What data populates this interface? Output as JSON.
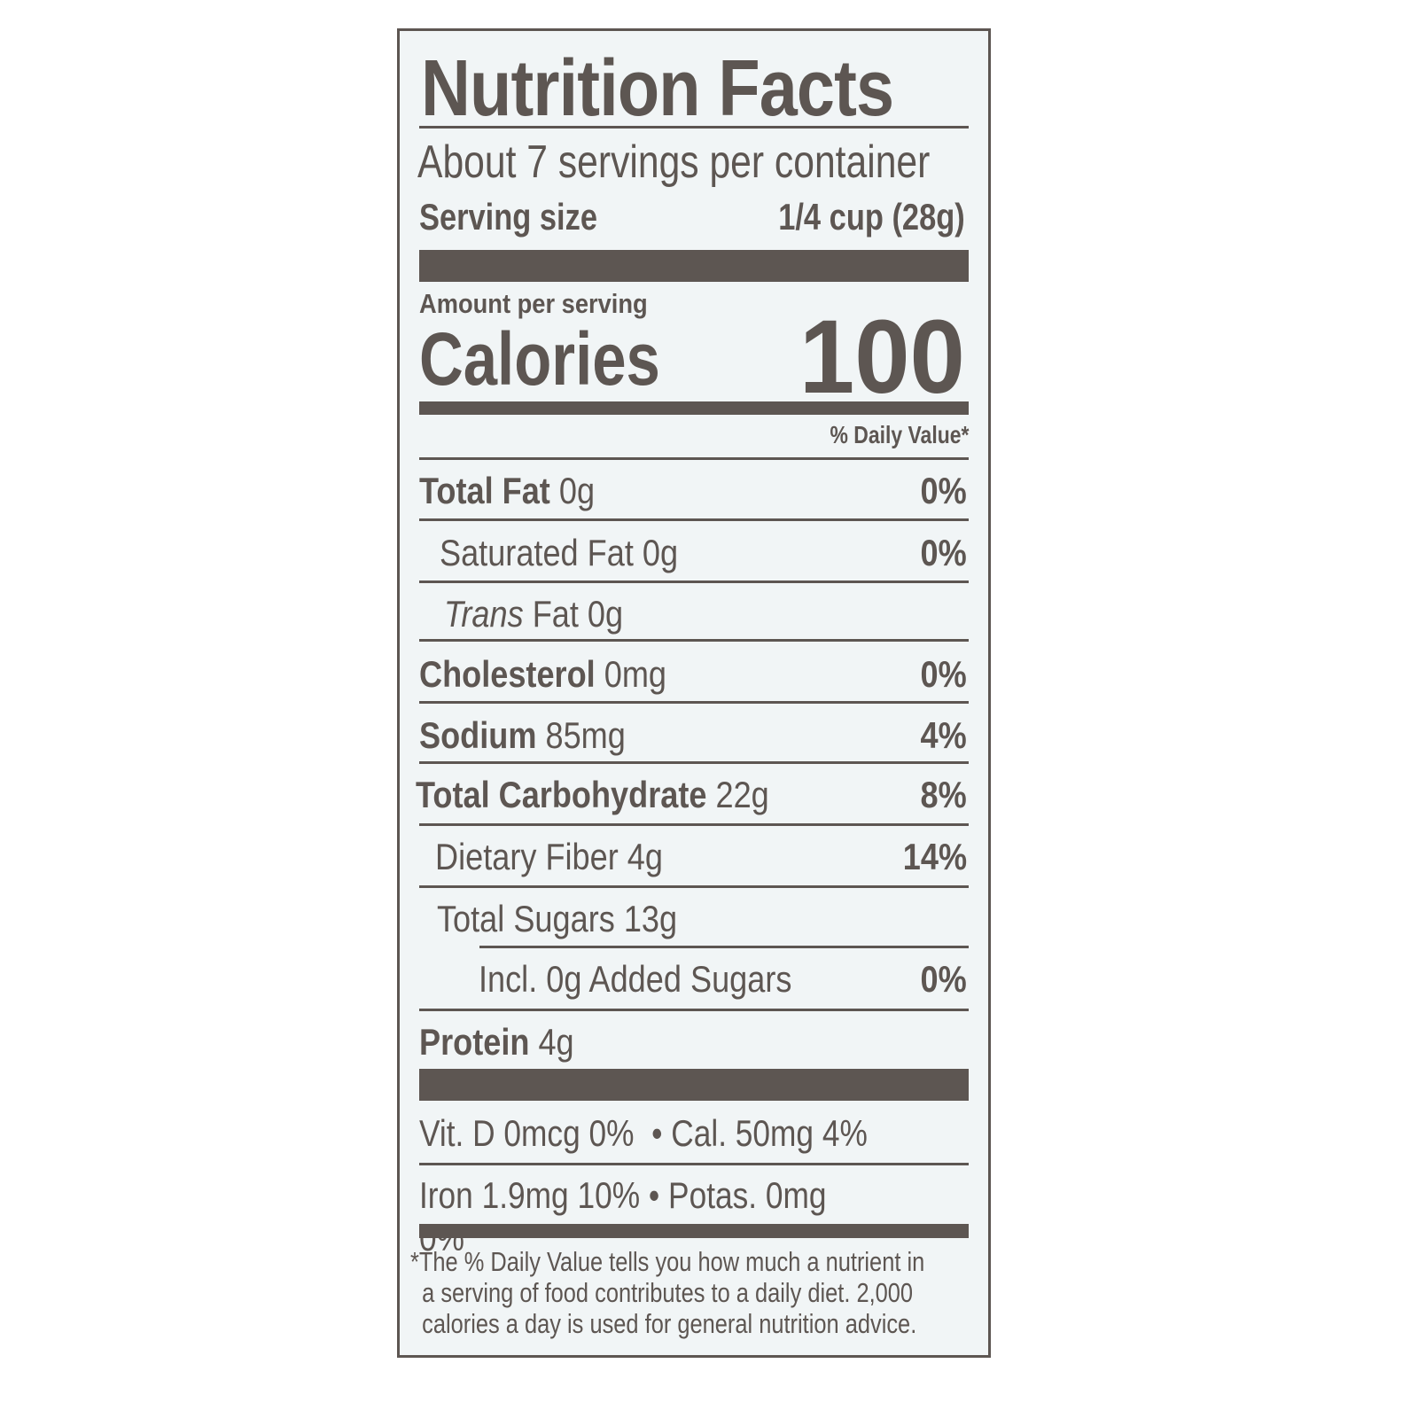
{
  "title": "Nutrition Facts",
  "servings_per_container": "About 7 servings per container",
  "serving_size": {
    "label": "Serving size",
    "value": "1/4 cup (28g)"
  },
  "amount_per_serving": "Amount per serving",
  "calories": {
    "label": "Calories",
    "value": "100"
  },
  "daily_value_header": "% Daily Value*",
  "nutrients": [
    {
      "name": "Total Fat",
      "amount": "0g",
      "dv": "0%"
    },
    {
      "name": "Saturated Fat",
      "amount": "0g",
      "dv": "0%"
    },
    {
      "name": "Trans",
      "amount": "Fat 0g",
      "dv": ""
    },
    {
      "name": "Cholesterol",
      "amount": "0mg",
      "dv": "0%"
    },
    {
      "name": "Sodium",
      "amount": "85mg",
      "dv": "4%"
    },
    {
      "name": "Total Carbohydrate",
      "amount": "22g",
      "dv": "8%"
    },
    {
      "name": "Dietary Fiber",
      "amount": "4g",
      "dv": "14%"
    },
    {
      "name": "Total Sugars",
      "amount": "13g",
      "dv": ""
    },
    {
      "name": "Incl. 0g Added Sugars",
      "amount": "",
      "dv": "0%"
    },
    {
      "name": "Protein",
      "amount": "4g",
      "dv": ""
    }
  ],
  "vitamins": [
    {
      "left": "Vit. D 0mcg 0%",
      "right": "Cal. 50mg  4%"
    },
    {
      "left": "Iron 1.9mg 10%",
      "right": "Potas. 0mg 0%"
    }
  ],
  "bullet": "•",
  "footnote": [
    "*The % Daily Value tells you how much a nutrient in",
    "a serving of food contributes to a daily diet. 2,000",
    "calories a day is used for general nutrition advice."
  ],
  "colors": {
    "ink": "#5d5652",
    "background": "#f1f5f6"
  }
}
